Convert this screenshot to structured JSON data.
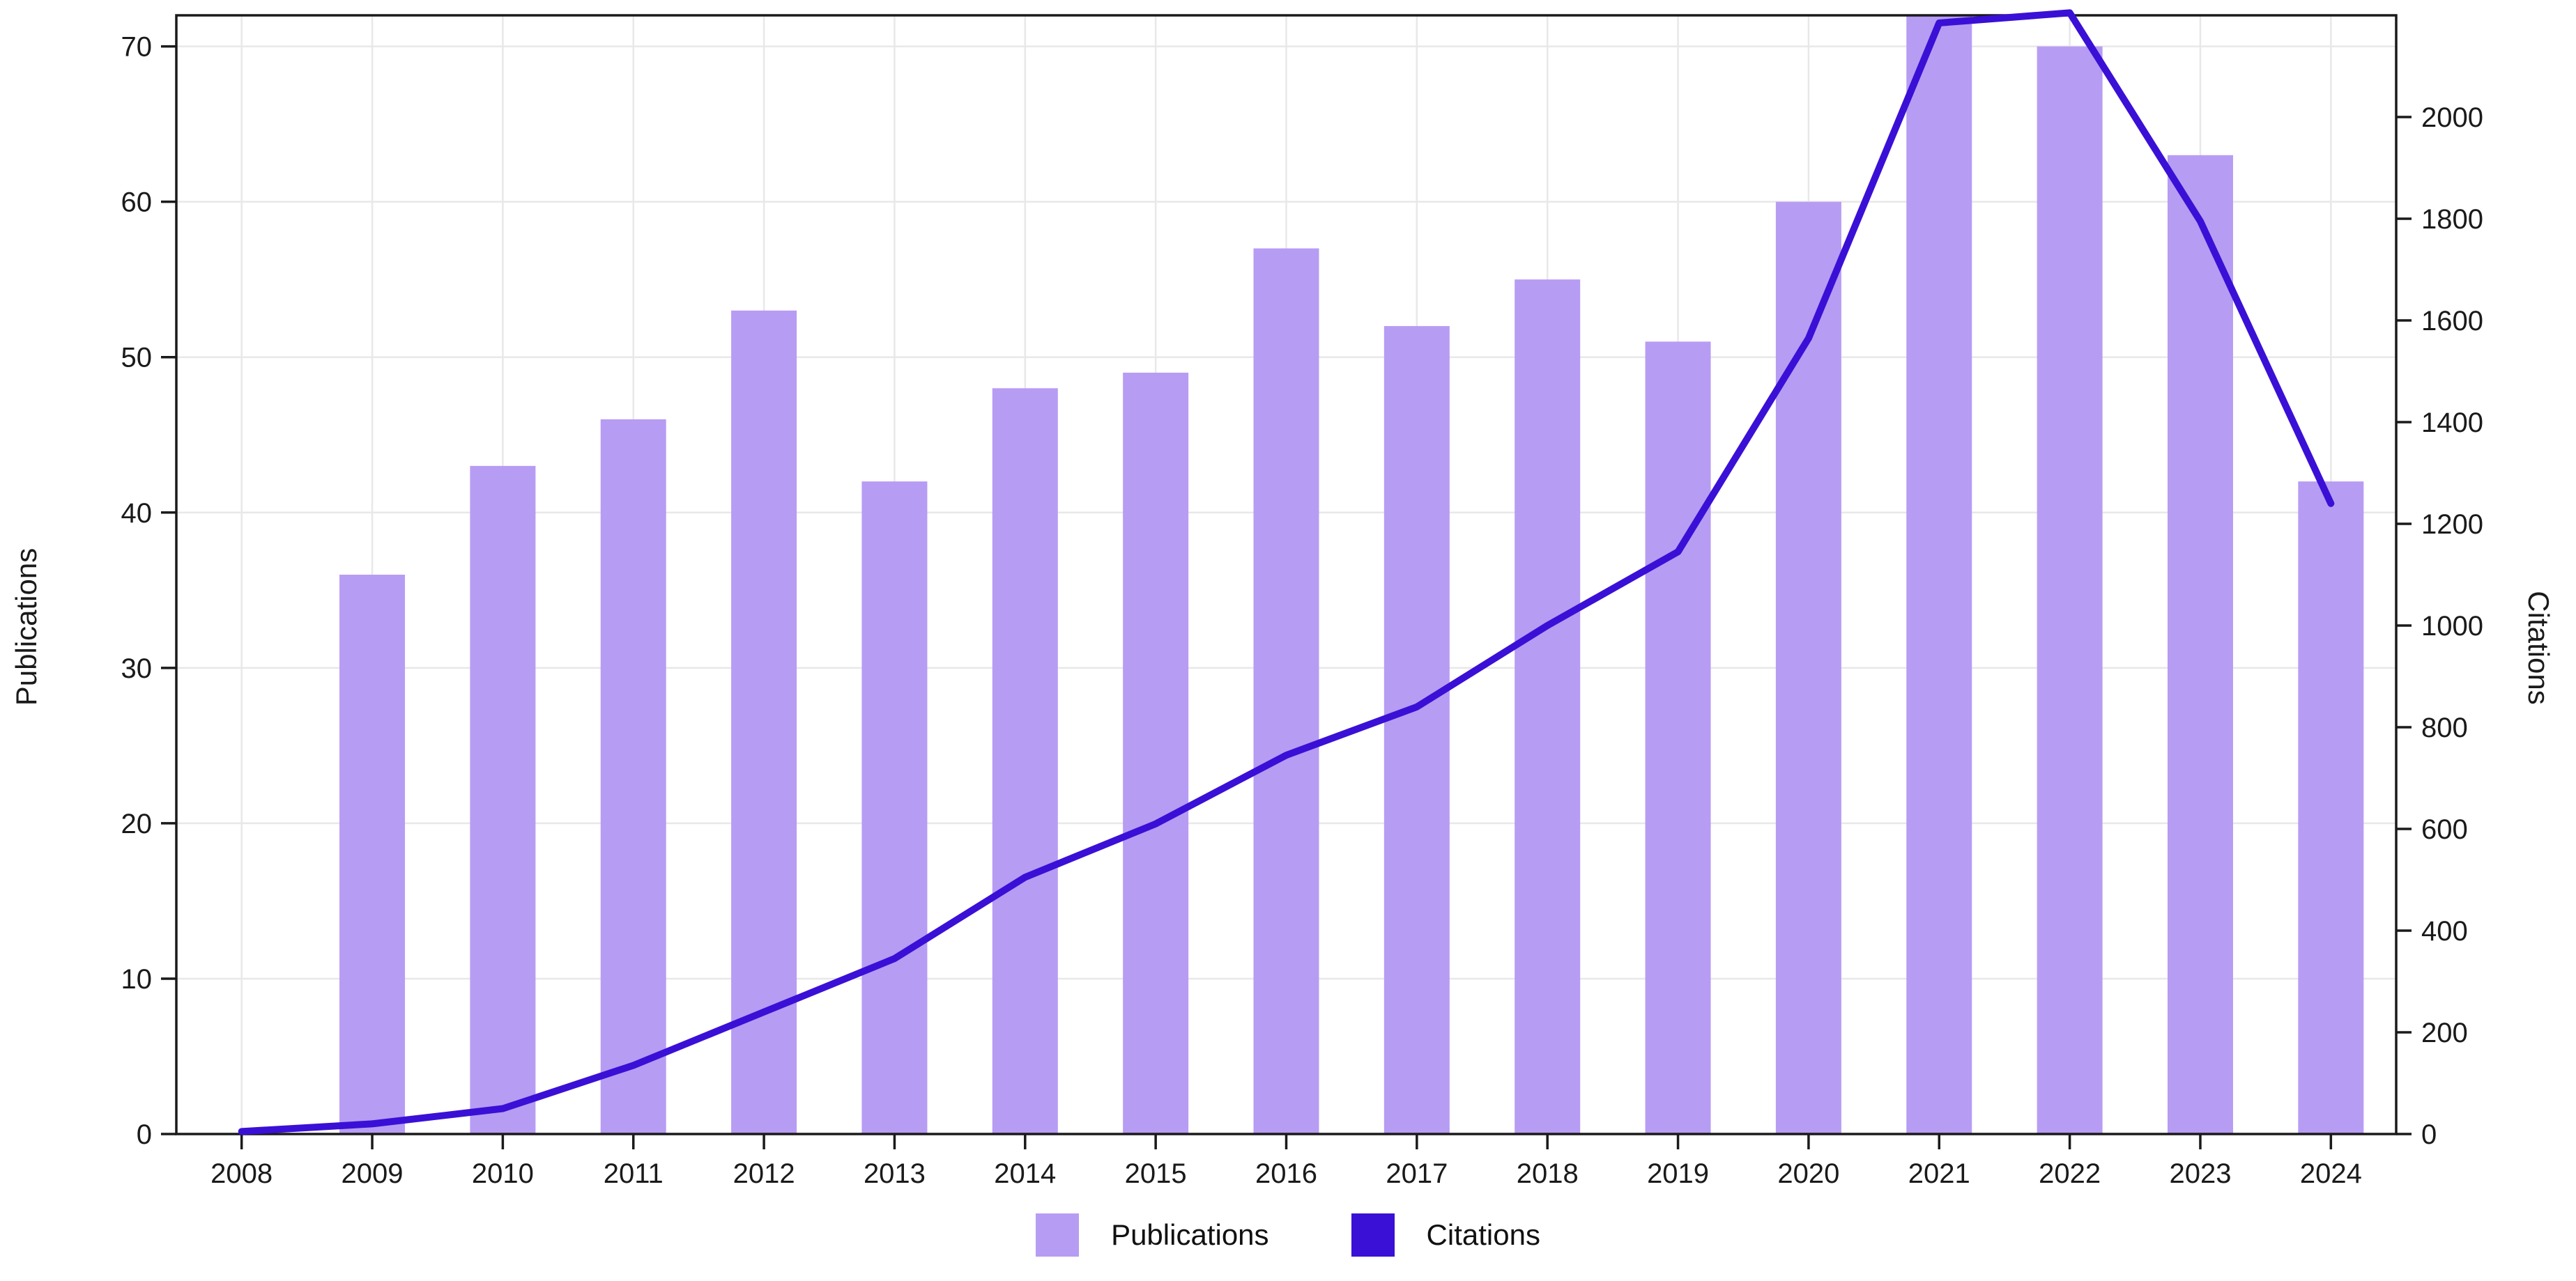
{
  "chart_data": {
    "type": "combo",
    "title": "",
    "categories": [
      "2008",
      "2009",
      "2010",
      "2011",
      "2012",
      "2013",
      "2014",
      "2015",
      "2016",
      "2017",
      "2018",
      "2019",
      "2020",
      "2021",
      "2022",
      "2023",
      "2024"
    ],
    "series": [
      {
        "name": "Publications",
        "type": "bar",
        "axis": "left",
        "values": [
          0,
          36,
          43,
          46,
          53,
          42,
          48,
          49,
          57,
          52,
          55,
          51,
          60,
          72,
          70,
          63,
          42
        ]
      },
      {
        "name": "Citations",
        "type": "line",
        "axis": "right",
        "values": [
          5,
          20,
          50,
          135,
          240,
          345,
          505,
          610,
          745,
          840,
          1000,
          1145,
          1565,
          2185,
          2205,
          1795,
          1240
        ]
      }
    ],
    "xlabel": "",
    "ylabel_left": "Publications",
    "ylabel_right": "Citations",
    "left_ticks": [
      0,
      10,
      20,
      30,
      40,
      50,
      60,
      70
    ],
    "right_ticks": [
      0,
      200,
      400,
      600,
      800,
      1000,
      1200,
      1400,
      1600,
      1800,
      2000
    ],
    "ylim_left": [
      0,
      72
    ],
    "ylim_right": [
      0,
      2200
    ],
    "grid": true,
    "legend_position": "bottom",
    "colors": {
      "publications_bar": "#b79cf4",
      "citations_line": "#3a10d6",
      "gridline": "#e8e8e8",
      "axis": "#1a1a1a",
      "tick_text": "#1a1a1a"
    }
  }
}
